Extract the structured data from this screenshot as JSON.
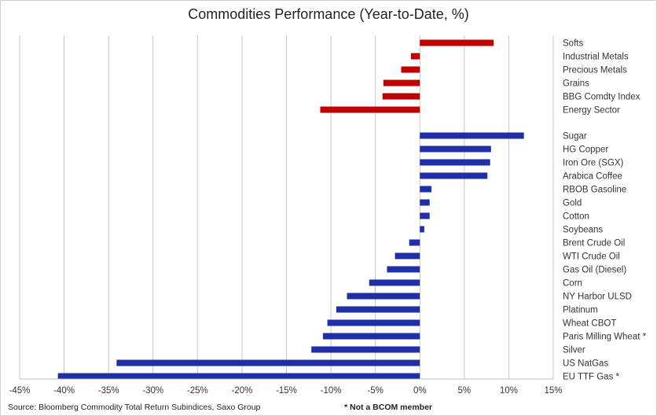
{
  "chart_data": {
    "type": "bar",
    "orientation": "horizontal",
    "title": "Commodities Performance (Year-to-Date, %)",
    "xlabel": "",
    "ylabel": "",
    "xlim": [
      -45,
      15
    ],
    "xticks": [
      -45,
      -40,
      -35,
      -30,
      -25,
      -20,
      -15,
      -10,
      -5,
      0,
      5,
      10,
      15
    ],
    "tick_suffix": "%",
    "grid": true,
    "colors": {
      "sectors": "#c00000",
      "commodities": "#1f2fa8"
    },
    "groups": [
      {
        "name": "sectors",
        "categories": [
          "Softs",
          "Industrial Metals",
          "Precious Metals",
          "Grains",
          "BBG Comdty Index",
          "Energy Sector"
        ],
        "values": [
          8.3,
          -1.0,
          -2.1,
          -4.1,
          -4.2,
          -11.2
        ]
      },
      {
        "name": "commodities",
        "categories": [
          "Sugar",
          "HG Copper",
          "Iron Ore (SGX)",
          "Arabica Coffee",
          "RBOB Gasoline",
          "Gold",
          "Cotton",
          "Soybeans",
          "Brent Crude Oil",
          "WTI Crude Oil",
          "Gas Oil (Diesel)",
          "Corn",
          "NY Harbor ULSD",
          "Platinum",
          "Wheat CBOT",
          "Paris Milling Wheat *",
          "Silver",
          "US NatGas",
          "EU TTF Gas *"
        ],
        "values": [
          11.7,
          8.0,
          7.9,
          7.6,
          1.3,
          1.1,
          1.1,
          0.5,
          -1.2,
          -2.8,
          -3.7,
          -5.7,
          -8.2,
          -9.4,
          -10.4,
          -10.9,
          -12.2,
          -34.1,
          -40.7
        ]
      }
    ]
  },
  "footer": {
    "source": "Source: Bloomberg Commodity Total Return Subindices, Saxo Group",
    "note": "* Not a BCOM member"
  }
}
